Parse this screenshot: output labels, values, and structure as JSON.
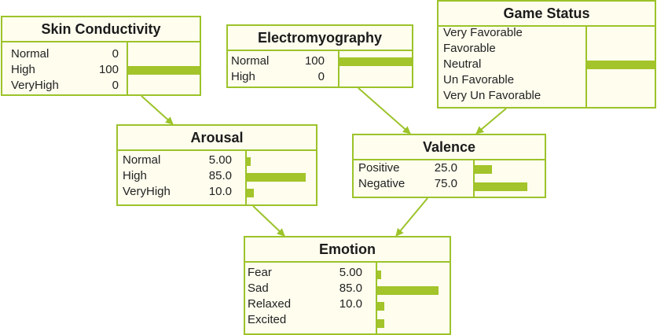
{
  "nodes": {
    "skin": {
      "title": "Skin Conductivity",
      "states": [
        {
          "name": "Normal",
          "value": "0",
          "p": 0
        },
        {
          "name": "High",
          "value": "100",
          "p": 100
        },
        {
          "name": "VeryHigh",
          "value": "0",
          "p": 0
        }
      ]
    },
    "emg": {
      "title": "Electromyography",
      "states": [
        {
          "name": "Normal",
          "value": "100",
          "p": 100
        },
        {
          "name": "High",
          "value": "0",
          "p": 0
        }
      ]
    },
    "game": {
      "title": "Game Status",
      "states": [
        {
          "name": "Very Favorable",
          "value": "",
          "p": 0
        },
        {
          "name": "Favorable",
          "value": "",
          "p": 0
        },
        {
          "name": "Neutral",
          "value": "",
          "p": 100
        },
        {
          "name": "Un Favorable",
          "value": "",
          "p": 0
        },
        {
          "name": "Very Un Favorable",
          "value": "",
          "p": 0
        }
      ]
    },
    "arousal": {
      "title": "Arousal",
      "states": [
        {
          "name": "Normal",
          "value": "5.00",
          "p": 5
        },
        {
          "name": "High",
          "value": "85.0",
          "p": 85
        },
        {
          "name": "VeryHigh",
          "value": "10.0",
          "p": 10
        }
      ]
    },
    "valence": {
      "title": "Valence",
      "states": [
        {
          "name": "Positive",
          "value": "25.0",
          "p": 25
        },
        {
          "name": "Negative",
          "value": "75.0",
          "p": 75
        }
      ]
    },
    "emotion": {
      "title": "Emotion",
      "states": [
        {
          "name": "Fear",
          "value": "5.00",
          "p": 5
        },
        {
          "name": "Sad",
          "value": "85.0",
          "p": 85
        },
        {
          "name": "Relaxed",
          "value": "10.0",
          "p": 10
        },
        {
          "name": "Excited",
          "value": "",
          "p": 10
        }
      ]
    }
  },
  "edges": [
    [
      "skin",
      "arousal"
    ],
    [
      "emg",
      "valence"
    ],
    [
      "game",
      "valence"
    ],
    [
      "arousal",
      "emotion"
    ],
    [
      "valence",
      "emotion"
    ]
  ],
  "colors": {
    "accent": "#9cc32a",
    "bar": "#a3c42a",
    "node_bg": "#fefdee"
  }
}
